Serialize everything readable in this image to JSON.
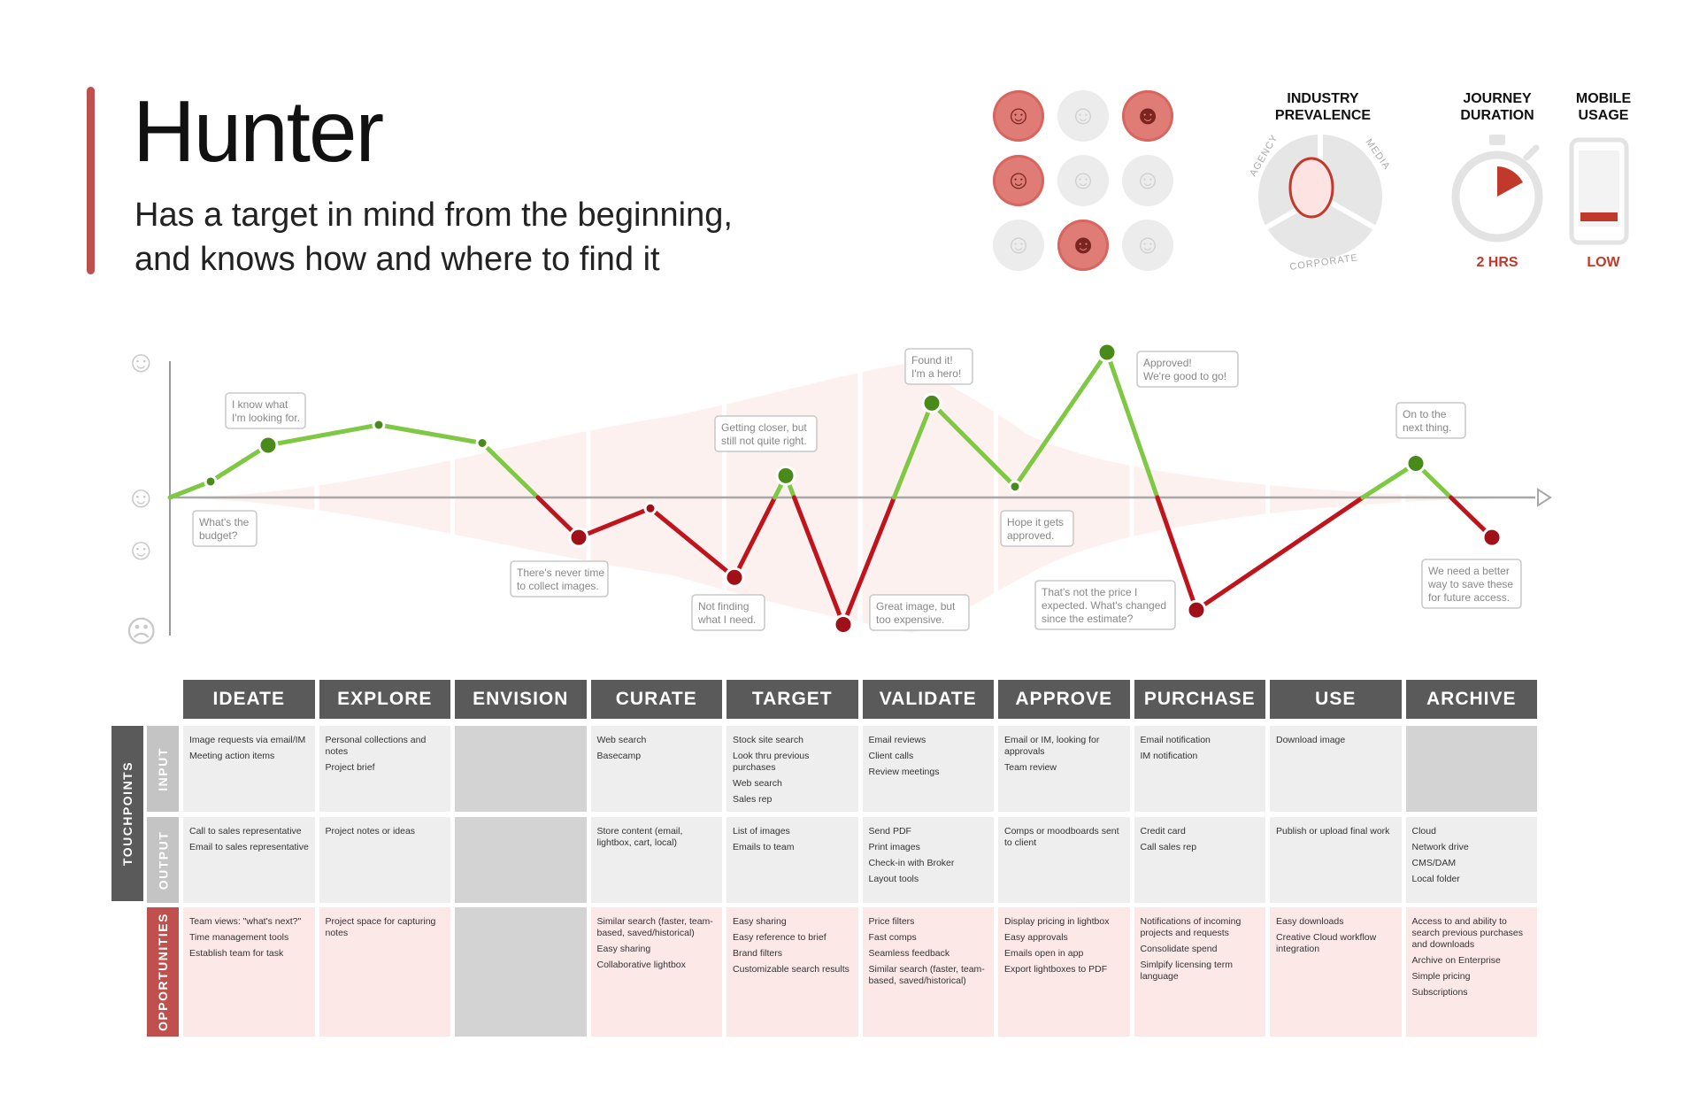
{
  "persona": {
    "name": "Hunter",
    "tagline_line1": "Has a target in mind from the beginning,",
    "tagline_line2": "and knows how and where to find it"
  },
  "avatars": [
    {
      "icon": "person-glasses-icon",
      "active": true
    },
    {
      "icon": "person-icon",
      "active": false
    },
    {
      "icon": "person-beard-icon",
      "active": true
    },
    {
      "icon": "person-curly-hair-icon",
      "active": true
    },
    {
      "icon": "person-icon",
      "active": false
    },
    {
      "icon": "person-icon",
      "active": false
    },
    {
      "icon": "person-icon",
      "active": false
    },
    {
      "icon": "person-beard-icon",
      "active": true
    },
    {
      "icon": "person-icon",
      "active": false
    }
  ],
  "metrics": {
    "industry_line1": "INDUSTRY",
    "industry_line2": "PREVALENCE",
    "industry_segments": [
      "AGENCY",
      "MEDIA",
      "CORPORATE"
    ],
    "duration_line1": "JOURNEY",
    "duration_line2": "DURATION",
    "duration_value": "2 HRS",
    "mobile_line1": "MOBILE",
    "mobile_line2": "USAGE",
    "mobile_value": "LOW",
    "accent": "#c0392b"
  },
  "chart_data": {
    "type": "line",
    "description_scale": "emotion from sad (-2) to happy (+2), neutral at 0",
    "ylim": [
      -2,
      2
    ],
    "colors": {
      "positive": "#7ec843",
      "negative": "#c0141d",
      "positive_dot": "#4a8a1b",
      "negative_dot": "#a01018"
    },
    "points": [
      {
        "stage": "IDEATE",
        "y": 0.22,
        "dot": "small"
      },
      {
        "stage": "IDEATE",
        "y": 0.72,
        "dot": "large",
        "callout": [
          "I know what",
          "I'm looking for."
        ]
      },
      {
        "stage": "IDEATE",
        "y": 0.22,
        "dot": "none",
        "callout_below": [
          "What's the",
          "budget?"
        ]
      },
      {
        "stage": "EXPLORE",
        "y": 1.0,
        "dot": "small"
      },
      {
        "stage": "ENVISION",
        "y": 0.75,
        "dot": "small"
      },
      {
        "stage": "CURATE",
        "y": -0.55,
        "dot": "large",
        "callout": [
          "There's never time",
          "to collect images."
        ]
      },
      {
        "stage": "CURATE",
        "y": -0.15,
        "dot": "small"
      },
      {
        "stage": "TARGET",
        "y": -1.1,
        "dot": "large",
        "callout": [
          "Not finding",
          "what I need."
        ]
      },
      {
        "stage": "TARGET",
        "y": 0.3,
        "dot": "large",
        "callout": [
          "Getting closer, but",
          "still not quite right."
        ]
      },
      {
        "stage": "VALIDATE",
        "y": -1.75,
        "dot": "large",
        "callout": [
          "Great image, but",
          "too expensive."
        ]
      },
      {
        "stage": "VALIDATE",
        "y": 1.3,
        "dot": "large",
        "callout": [
          "Found it!",
          "I'm a hero!"
        ]
      },
      {
        "stage": "APPROVE",
        "y": 0.15,
        "dot": "small",
        "callout": [
          "Hope it gets",
          "approved."
        ]
      },
      {
        "stage": "APPROVE",
        "y": 2.0,
        "dot": "large",
        "callout": [
          "Approved!",
          "We're good to go!"
        ]
      },
      {
        "stage": "PURCHASE",
        "y": -1.55,
        "dot": "large",
        "callout": [
          "That's not the price I",
          "expected. What's changed",
          "since the estimate?"
        ]
      },
      {
        "stage": "USE",
        "y": 0.0,
        "dot": "none"
      },
      {
        "stage": "ARCHIVE",
        "y": 0.47,
        "dot": "large",
        "callout": [
          "On to the",
          "next thing."
        ]
      },
      {
        "stage": "ARCHIVE",
        "y": -0.55,
        "dot": "large",
        "callout": [
          "We need a better",
          "way to save these",
          "for future access."
        ]
      }
    ]
  },
  "stages": [
    "IDEATE",
    "EXPLORE",
    "ENVISION",
    "CURATE",
    "TARGET",
    "VALIDATE",
    "APPROVE",
    "PURCHASE",
    "USE",
    "ARCHIVE"
  ],
  "rows": {
    "touchpoints_label": "TOUCHPOINTS",
    "input_label": "INPUT",
    "output_label": "OUTPUT",
    "opportunities_label": "OPPORTUNITIES",
    "input": [
      [
        "Image requests via email/IM",
        "Meeting action items"
      ],
      [
        "Personal collections and notes",
        "Project brief"
      ],
      [],
      [
        "Web search",
        "Basecamp"
      ],
      [
        "Stock site search",
        "Look thru previous purchases",
        "Web search",
        "Sales rep"
      ],
      [
        "Email reviews",
        "Client calls",
        "Review meetings"
      ],
      [
        "Email or IM, looking for approvals",
        "Team review"
      ],
      [
        "Email notification",
        "IM notification"
      ],
      [
        "Download image"
      ],
      []
    ],
    "output": [
      [
        "Call to sales representative",
        "Email to sales representative"
      ],
      [
        "Project notes or ideas"
      ],
      [],
      [
        "Store content (email, lightbox, cart, local)"
      ],
      [
        "List of images",
        "Emails to team"
      ],
      [
        "Send PDF",
        "Print images",
        "Check-in with Broker",
        "Layout tools"
      ],
      [
        "Comps or moodboards sent to client"
      ],
      [
        "Credit card",
        "Call sales rep"
      ],
      [
        "Publish or upload final work"
      ],
      [
        "Cloud",
        "Network drive",
        "CMS/DAM",
        "Local folder"
      ]
    ],
    "opportunities": [
      [
        "Team views: \"what's next?\"",
        "Time management tools",
        "Establish team for task"
      ],
      [
        "Project space for capturing notes"
      ],
      [],
      [
        "Similar search (faster, team-based, saved/historical)",
        "Easy sharing",
        "Collaborative lightbox"
      ],
      [
        "Easy sharing",
        "Easy reference to brief",
        "Brand filters",
        "Customizable search results"
      ],
      [
        "Price filters",
        "Fast comps",
        "Seamless feedback",
        "Similar search (faster, team-based, saved/historical)"
      ],
      [
        "Display pricing in lightbox",
        "Easy approvals",
        "Emails open in app",
        "Export lightboxes to PDF"
      ],
      [
        "Notifications of incoming projects and requests",
        "Consolidate spend",
        "Simlpify licensing term language"
      ],
      [
        "Easy downloads",
        "Creative Cloud workflow integration"
      ],
      [
        "Access to and ability to search previous purchases and downloads",
        "Archive on Enterprise",
        "Simple pricing",
        "Subscriptions"
      ]
    ]
  }
}
